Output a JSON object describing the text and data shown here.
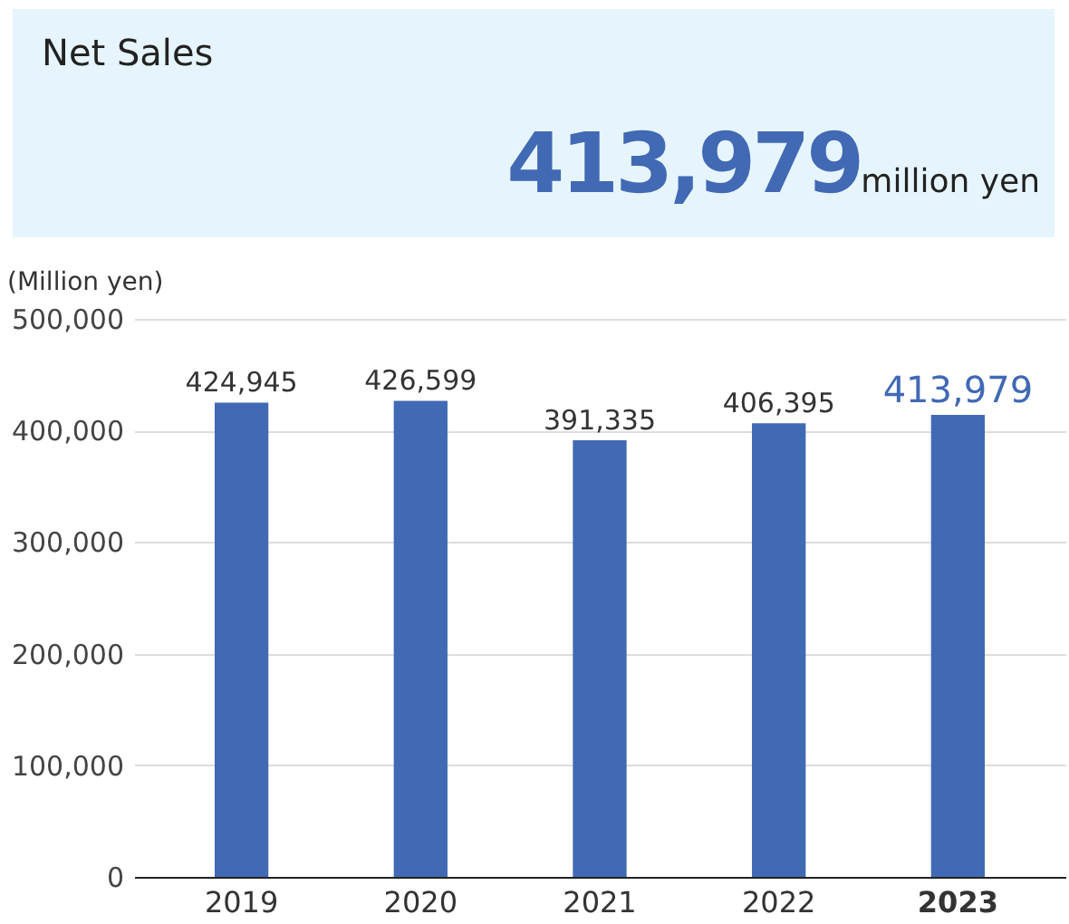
{
  "chart_data": {
    "type": "bar",
    "title": "Net Sales",
    "ylabel": "(Million yen)",
    "annotations": [
      "413,979",
      "million yen"
    ],
    "categories": [
      "2019",
      "2020",
      "2021",
      "2022",
      "2023"
    ],
    "values": [
      424945,
      426599,
      391335,
      406395,
      413979
    ],
    "value_labels": [
      "424,945",
      "426,599",
      "391,335",
      "406,395",
      "413,979"
    ],
    "color": "#4169b4",
    "ylim": [
      0,
      500000
    ],
    "yticks": [
      0,
      {
        "value": 100000,
        "label": "100,000"
      },
      {
        "value": 200000,
        "label": "200,000"
      },
      {
        "value": 300000,
        "label": "300,000"
      },
      {
        "value": 400000,
        "label": "400,000"
      },
      {
        "value": 500000,
        "label": "500,000"
      }
    ],
    "grid": "y"
  }
}
